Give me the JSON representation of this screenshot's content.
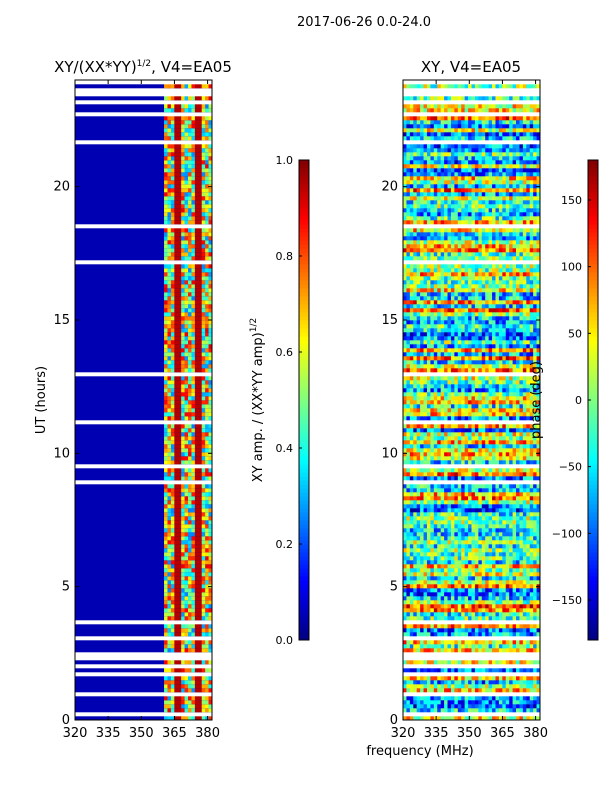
{
  "figure_title": "2017-06-26 0.0-24.0",
  "chart_data": [
    {
      "type": "heatmap",
      "title_main": "XY/(XX*YY)",
      "title_sup": "1/2",
      "title_rest": ", V4=EA05",
      "xlabel": "",
      "ylabel": "UT (hours)",
      "xlim": [
        320,
        382
      ],
      "ylim": [
        0,
        24
      ],
      "xticks": [
        320,
        335,
        350,
        365,
        380
      ],
      "yticks": [
        0,
        5,
        10,
        15,
        20
      ],
      "colorbar": {
        "label_main": "XY amp. / (XX*YY amp)",
        "label_sup": "1/2",
        "range": [
          0.0,
          1.0
        ],
        "ticks": [
          0.0,
          0.2,
          0.4,
          0.6,
          0.8,
          1.0
        ],
        "tick_labels": [
          "0.0",
          "0.2",
          "0.4",
          "0.6",
          "0.8",
          "1.0"
        ]
      },
      "description_values": {
        "background_level": 0.05,
        "active_band_mhz": [
          360,
          382
        ],
        "active_band_level_range": [
          0.25,
          0.9
        ]
      }
    },
    {
      "type": "heatmap",
      "title": "XY, V4=EA05",
      "xlabel": "frequency (MHz)",
      "ylabel": "",
      "xlim": [
        320,
        382
      ],
      "ylim": [
        0,
        24
      ],
      "xticks": [
        320,
        335,
        350,
        365,
        380
      ],
      "yticks": [
        0,
        5,
        10,
        15,
        20
      ],
      "colorbar": {
        "label": "phase (deg)",
        "range": [
          -180,
          180
        ],
        "ticks": [
          -150,
          -100,
          -50,
          0,
          50,
          100,
          150
        ],
        "tick_labels": [
          "−150",
          "−100",
          "−50",
          "0",
          "50",
          "100",
          "150"
        ]
      },
      "description_values": {
        "value_range_deg": [
          -180,
          180
        ]
      }
    }
  ],
  "colors": {
    "jet_low": "#00007f",
    "jet_high": "#7f0000",
    "gap": "#ffffff",
    "axis": "#000000"
  }
}
